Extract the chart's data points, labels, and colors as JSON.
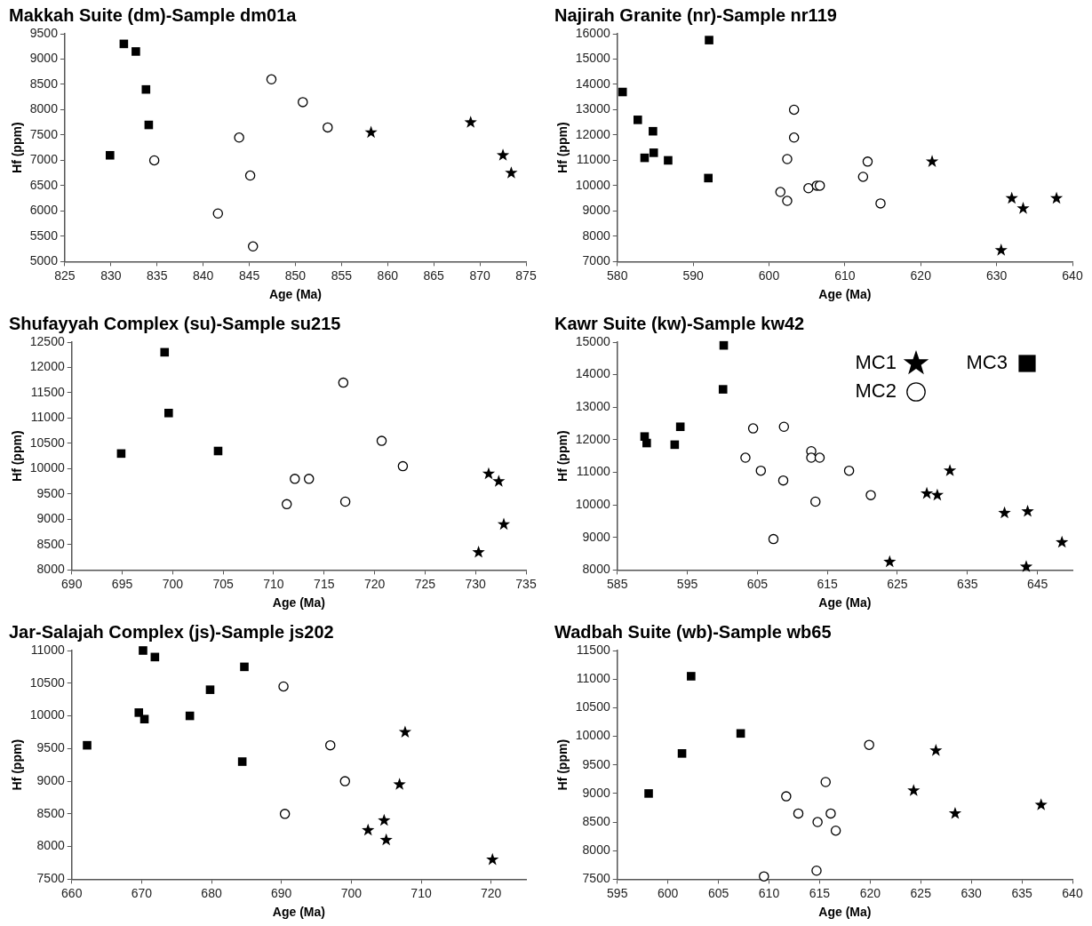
{
  "chart_data": [
    {
      "type": "scatter",
      "title": "Makkah Suite (dm)-Sample dm01a",
      "xlabel": "Age (Ma)",
      "ylabel": "Hf (ppm)",
      "xlim": [
        825,
        875
      ],
      "xticks": [
        825,
        830,
        835,
        840,
        845,
        850,
        855,
        860,
        865,
        870,
        875
      ],
      "ylim": [
        5000,
        9500
      ],
      "yticks": [
        5000,
        5500,
        6000,
        6500,
        7000,
        7500,
        8000,
        8500,
        9000,
        9500
      ],
      "series": [
        {
          "color": "#000000",
          "marker": "star",
          "x": [
            858.2,
            869.0,
            872.5,
            873.4
          ],
          "values": [
            7550,
            7750,
            7100,
            6750
          ]
        },
        {
          "color": "#000000",
          "marker": "circle",
          "x": [
            847.4,
            850.8,
            853.5,
            843.9,
            834.7,
            845.1,
            841.6,
            845.4
          ],
          "values": [
            8600,
            8150,
            7650,
            7450,
            7000,
            6700,
            5950,
            5300
          ]
        },
        {
          "color": "#000000",
          "marker": "square",
          "x": [
            831.4,
            832.7,
            833.8,
            834.1,
            829.9
          ],
          "values": [
            9300,
            9150,
            8400,
            7700,
            7100
          ]
        }
      ]
    },
    {
      "type": "scatter",
      "title": "Najirah Granite (nr)-Sample nr119",
      "xlabel": "Age (Ma)",
      "ylabel": "Hf (ppm)",
      "xlim": [
        580,
        640
      ],
      "xticks": [
        580,
        590,
        600,
        610,
        620,
        630,
        640
      ],
      "ylim": [
        7000,
        16000
      ],
      "yticks": [
        7000,
        8000,
        9000,
        10000,
        11000,
        12000,
        13000,
        14000,
        15000,
        16000
      ],
      "series": [
        {
          "color": "#000000",
          "marker": "star",
          "x": [
            621.5,
            632.0,
            633.5,
            637.9,
            630.6
          ],
          "values": [
            10950,
            9500,
            9100,
            9500,
            7450
          ]
        },
        {
          "color": "#000000",
          "marker": "circle",
          "x": [
            603.3,
            603.3,
            602.4,
            601.5,
            602.4,
            605.2,
            606.3,
            606.7,
            612.4,
            613.0,
            614.7
          ],
          "values": [
            13000,
            11900,
            11050,
            9750,
            9400,
            9900,
            10000,
            10000,
            10350,
            10950,
            9300
          ]
        },
        {
          "color": "#000000",
          "marker": "square",
          "x": [
            592.1,
            580.7,
            582.7,
            584.7,
            583.6,
            584.8,
            586.7,
            592.0
          ],
          "values": [
            15750,
            13700,
            12600,
            12150,
            11100,
            11300,
            11000,
            10300
          ]
        }
      ]
    },
    {
      "type": "scatter",
      "title": "Shufayyah Complex (su)-Sample su215",
      "xlabel": "Age (Ma)",
      "ylabel": "Hf (ppm)",
      "xlim": [
        690,
        735
      ],
      "xticks": [
        690,
        695,
        700,
        705,
        710,
        715,
        720,
        725,
        730,
        735
      ],
      "ylim": [
        8000,
        12500
      ],
      "yticks": [
        8000,
        8500,
        9000,
        9500,
        10000,
        10500,
        11000,
        11500,
        12000,
        12500
      ],
      "series": [
        {
          "color": "#000000",
          "marker": "star",
          "x": [
            731.3,
            732.3,
            732.8,
            730.3
          ],
          "values": [
            9900,
            9750,
            8900,
            8350
          ]
        },
        {
          "color": "#000000",
          "marker": "circle",
          "x": [
            716.9,
            720.7,
            722.8,
            712.1,
            713.5,
            711.3,
            717.1
          ],
          "values": [
            11700,
            10550,
            10050,
            9800,
            9800,
            9300,
            9350
          ]
        },
        {
          "color": "#000000",
          "marker": "square",
          "x": [
            699.2,
            699.6,
            694.9,
            704.5
          ],
          "values": [
            12300,
            11100,
            10300,
            10350
          ]
        }
      ]
    },
    {
      "type": "scatter",
      "title": "Kawr Suite (kw)-Sample kw42",
      "xlabel": "Age (Ma)",
      "ylabel": "Hf (ppm)",
      "xlim": [
        585,
        650
      ],
      "xticks": [
        585,
        595,
        605,
        615,
        625,
        635,
        645
      ],
      "ylim": [
        8000,
        15000
      ],
      "yticks": [
        8000,
        9000,
        10000,
        11000,
        12000,
        13000,
        14000,
        15000
      ],
      "legend": "top right",
      "series": [
        {
          "name": "MC1",
          "color": "#000000",
          "marker": "star",
          "x": [
            632.5,
            629.2,
            630.7,
            640.3,
            643.6,
            648.5,
            623.9,
            643.4
          ],
          "values": [
            11050,
            10350,
            10300,
            9750,
            9800,
            8850,
            8250,
            8100
          ]
        },
        {
          "name": "MC2",
          "color": "#000000",
          "marker": "circle",
          "x": [
            604.4,
            608.8,
            603.3,
            605.5,
            608.7,
            612.7,
            612.7,
            613.9,
            618.1,
            613.3,
            621.2,
            607.3
          ],
          "values": [
            12350,
            12400,
            11450,
            11050,
            10750,
            11650,
            11450,
            11450,
            11050,
            10100,
            10300,
            8950
          ]
        },
        {
          "name": "MC3",
          "color": "#000000",
          "marker": "square",
          "x": [
            600.2,
            600.1,
            594.0,
            588.9,
            589.2,
            593.2
          ],
          "values": [
            14900,
            13550,
            12400,
            12100,
            11900,
            11850
          ]
        }
      ]
    },
    {
      "type": "scatter",
      "title": "Jar-Salajah Complex (js)-Sample js202",
      "xlabel": "Age (Ma)",
      "ylabel": "Hf (ppm)",
      "xlim": [
        660,
        725
      ],
      "xticks": [
        660,
        670,
        680,
        690,
        700,
        710,
        720
      ],
      "ylim": [
        7500,
        11000
      ],
      "yticks": [
        7500,
        8000,
        8500,
        9000,
        9500,
        10000,
        10500,
        11000
      ],
      "series": [
        {
          "color": "#000000",
          "marker": "star",
          "x": [
            707.7,
            706.9,
            704.7,
            702.4,
            705.0,
            720.2
          ],
          "values": [
            9750,
            8950,
            8400,
            8250,
            8100,
            7800
          ]
        },
        {
          "color": "#000000",
          "marker": "circle",
          "x": [
            690.3,
            697.0,
            699.1,
            690.5
          ],
          "values": [
            10450,
            9550,
            9000,
            8500
          ]
        },
        {
          "color": "#000000",
          "marker": "square",
          "x": [
            670.2,
            671.9,
            684.7,
            679.8,
            669.6,
            670.4,
            676.9,
            662.2,
            684.4
          ],
          "values": [
            11000,
            10900,
            10750,
            10400,
            10050,
            9950,
            10000,
            9550,
            9300
          ]
        }
      ]
    },
    {
      "type": "scatter",
      "title": "Wadbah Suite (wb)-Sample wb65",
      "xlabel": "Age (Ma)",
      "ylabel": "Hf (ppm)",
      "xlim": [
        595,
        640
      ],
      "xticks": [
        595,
        600,
        605,
        610,
        615,
        620,
        625,
        630,
        635,
        640
      ],
      "ylim": [
        7500,
        11500
      ],
      "yticks": [
        7500,
        8000,
        8500,
        9000,
        9500,
        10000,
        10500,
        11000,
        11500
      ],
      "series": [
        {
          "color": "#000000",
          "marker": "star",
          "x": [
            626.5,
            624.3,
            628.4,
            636.9
          ],
          "values": [
            9750,
            9050,
            8650,
            8800
          ]
        },
        {
          "color": "#000000",
          "marker": "circle",
          "x": [
            619.9,
            615.6,
            611.7,
            612.9,
            616.1,
            614.8,
            616.6,
            614.7,
            609.5
          ],
          "values": [
            9850,
            9200,
            8950,
            8650,
            8650,
            8500,
            8350,
            7650,
            7550
          ]
        },
        {
          "color": "#000000",
          "marker": "square",
          "x": [
            602.3,
            607.2,
            601.4,
            598.1
          ],
          "values": [
            11050,
            10050,
            9700,
            9000
          ]
        }
      ]
    }
  ]
}
